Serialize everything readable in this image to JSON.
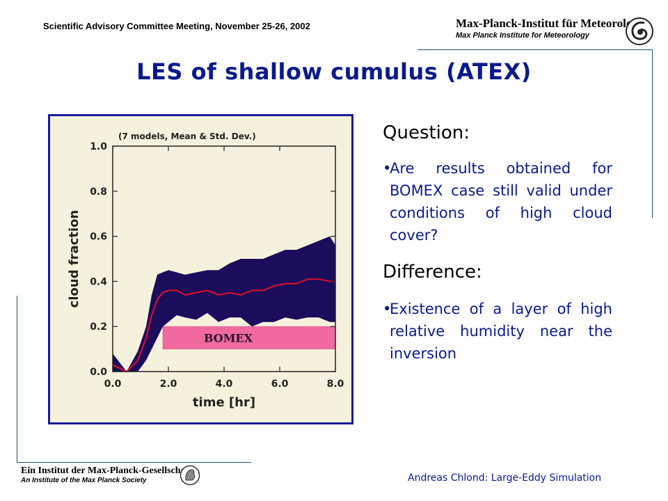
{
  "header": {
    "meeting": "Scientific Advisory Committee Meeting, November 25-26, 2002",
    "institute_de": "Max-Planck-Institut für Meteorologie",
    "institute_en": "Max Planck Institute for Meteorology"
  },
  "slide": {
    "title": "LES of shallow cumulus (ATEX)",
    "question_heading": "Question:",
    "question_text": "Are results obtained for BOMEX case still valid under conditions of high cloud cover?",
    "difference_heading": "Difference:",
    "difference_text": "Existence of a layer of high relative humidity near the inversion",
    "bullet_char": "•"
  },
  "footer": {
    "society_de": "Ein Institut der Max-Planck-Gesellschaft",
    "society_en": "An Institute of the Max Planck Society",
    "author": "Andreas Chlond: Large-Eddy Simulation"
  },
  "chart_data": {
    "type": "area",
    "annotation": "(7 models, Mean & Std. Dev.)",
    "xlabel": "time [hr]",
    "ylabel": "cloud fraction",
    "xlim": [
      0,
      8
    ],
    "ylim": [
      0,
      1
    ],
    "x_ticks": [
      "0.0",
      "2.0",
      "4.0",
      "6.0",
      "8.0"
    ],
    "y_ticks": [
      "0.0",
      "0.2",
      "0.4",
      "0.6",
      "0.8",
      "1.0"
    ],
    "band_label": "BOMEX",
    "band_range": [
      0.1,
      0.2
    ],
    "colors": {
      "mean": "#e0102a",
      "spread": "#1c0c5c",
      "band": "#f06aa0",
      "plot_bg": "#f6f1dc"
    },
    "x": [
      0.0,
      0.5,
      0.9,
      1.2,
      1.4,
      1.6,
      1.8,
      2.0,
      2.3,
      2.6,
      3.0,
      3.4,
      3.8,
      4.2,
      4.6,
      5.0,
      5.4,
      5.8,
      6.2,
      6.6,
      7.0,
      7.4,
      7.8,
      8.0
    ],
    "mean": [
      0.03,
      0.0,
      0.05,
      0.15,
      0.25,
      0.32,
      0.35,
      0.36,
      0.36,
      0.34,
      0.35,
      0.36,
      0.34,
      0.35,
      0.34,
      0.36,
      0.36,
      0.38,
      0.39,
      0.39,
      0.41,
      0.41,
      0.4,
      0.4
    ],
    "upper": [
      0.08,
      0.0,
      0.09,
      0.2,
      0.34,
      0.43,
      0.44,
      0.45,
      0.44,
      0.43,
      0.44,
      0.45,
      0.45,
      0.48,
      0.5,
      0.5,
      0.5,
      0.52,
      0.54,
      0.54,
      0.56,
      0.58,
      0.6,
      0.56
    ],
    "lower": [
      0.0,
      0.0,
      0.0,
      0.05,
      0.1,
      0.15,
      0.2,
      0.22,
      0.25,
      0.24,
      0.23,
      0.26,
      0.22,
      0.24,
      0.24,
      0.2,
      0.22,
      0.22,
      0.24,
      0.23,
      0.24,
      0.24,
      0.22,
      0.22
    ]
  }
}
